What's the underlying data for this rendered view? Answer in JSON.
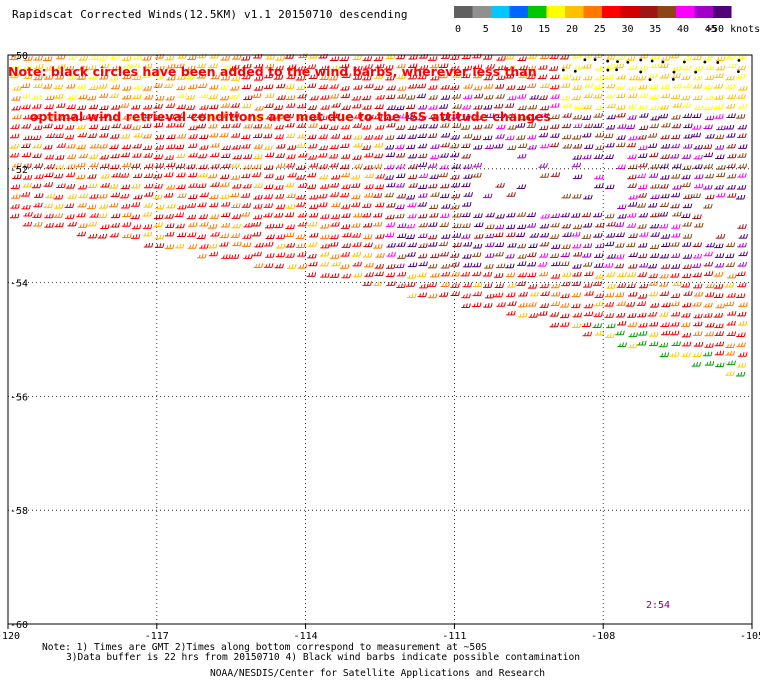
{
  "title": "Rapidscat Corrected Winds(12.5KM) v1.1 20150710 descending",
  "note_lines": [
    "Note: black circles have been added to the wind barbs, wherever less than",
    "     optimal wind retrieval conditions are met due to the ISS attitude changes"
  ],
  "legend": {
    "labels": [
      "0",
      "5",
      "10",
      "15",
      "20",
      "25",
      "30",
      "35",
      "40",
      "45",
      ">50 knots"
    ],
    "colors": [
      "#606060",
      "#909090",
      "#00c8ff",
      "#0064ff",
      "#00c800",
      "#ffff00",
      "#ffc000",
      "#ff7800",
      "#ff0000",
      "#d20000",
      "#a01414",
      "#8c4614",
      "#ff00ff",
      "#a000c8",
      "#500078"
    ]
  },
  "map": {
    "lon_range": [
      -120,
      -105
    ],
    "lat_range": [
      -60,
      -50
    ],
    "lon_ticks": [
      "-120",
      "-117",
      "-114",
      "-111",
      "-108",
      "-105"
    ],
    "lat_ticks": [
      "-50",
      "-52",
      "-54",
      "-56",
      "-58",
      "-60"
    ],
    "grid": "dotted",
    "swath_edge": [
      [
        -120,
        -53.0
      ],
      [
        -114,
        -53.9
      ],
      [
        -110,
        -54.6
      ],
      [
        -107,
        -55.3
      ],
      [
        -105.3,
        -55.7
      ]
    ]
  },
  "timestamp": "2:54",
  "footnotes": [
    "Note: 1) Times are GMT 2)Times along bottom correspond to measurement at ~50S",
    "3)Data buffer is 22 hrs from 20150710 4) Black wind barbs indicate possible contamination"
  ],
  "credit": "NOAA/NESDIS/Center for Satellite Applications and Research"
}
